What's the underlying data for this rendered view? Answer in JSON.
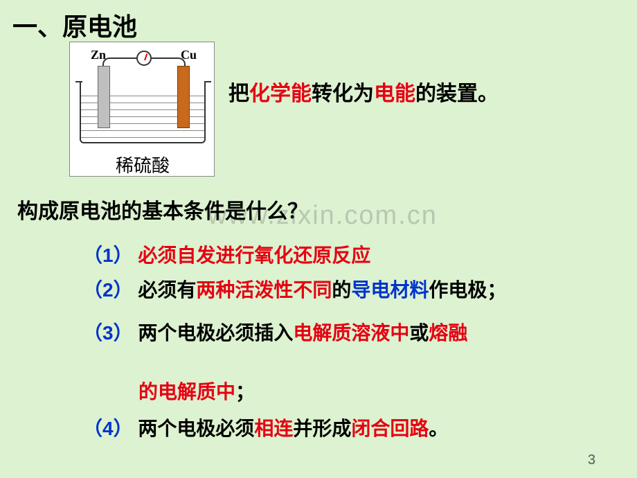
{
  "heading": "一、原电池",
  "diagram": {
    "zn": "Zn",
    "cu": "Cu",
    "liquid_label": "稀硫酸",
    "zn_bar_color": "#bfbfbf",
    "cu_bar_color": "#c76a1d",
    "box_bg": "#ffffff"
  },
  "definition": {
    "p1": "把",
    "t1": "化学能",
    "p2": "转化为",
    "t2": "电能",
    "p3": "的装置。"
  },
  "watermark": "www.zixin.com.cn",
  "question": "构成原电池的基本条件是什么？",
  "items": {
    "i1": {
      "num": "（1）",
      "t": "必须自发进行氧化还原反应"
    },
    "i2": {
      "num": "（2）",
      "p1": "必须有",
      "r1": "两种活泼性不同",
      "p2": "的",
      "b1": "导电材料",
      "p3": "作电极；"
    },
    "i3": {
      "num": "（3）",
      "p1": "两个电极必须插入",
      "r1": "电解质溶液中",
      "p2": "或",
      "r2": "熔融"
    },
    "i3b": {
      "r1": "的电解质中",
      "p1": "；"
    },
    "i4": {
      "num": "（4）",
      "p1": "两个电极必须",
      "r1": "相连",
      "p2": "并形成",
      "r2": "闭合回路",
      "p3": "。"
    }
  },
  "page_number": "3",
  "colors": {
    "bg": "#dcf2d0",
    "red": "#e60012",
    "blue": "#0033cc",
    "black": "#000000"
  }
}
